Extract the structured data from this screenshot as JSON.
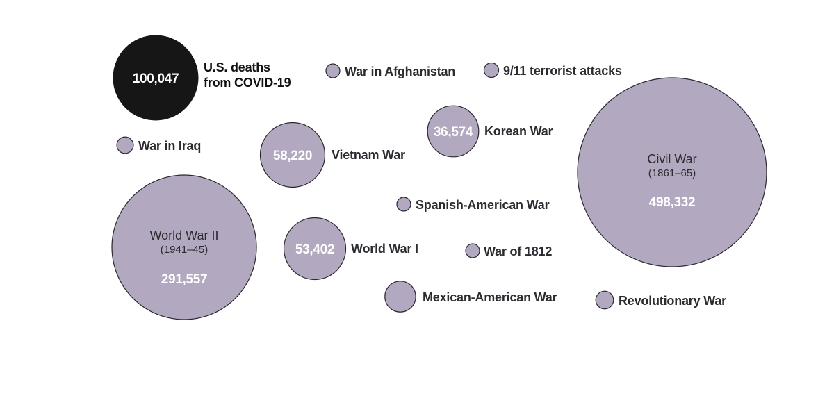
{
  "chart_data": {
    "type": "bubble",
    "title": "",
    "unit": "",
    "colors": {
      "highlight_fill": "#161616",
      "highlight_text": "#ffffff",
      "bubble_fill": "#b2a8bf",
      "bubble_stroke": "#2b2730",
      "bubble_value_text": "#ffffff",
      "label_text": "#2d2a30",
      "inside_label_text": "#2d2a30"
    },
    "items": [
      {
        "name": "U.S. deaths from COVID-19",
        "name_lines": [
          "U.S. deaths",
          "from COVID-19"
        ],
        "value": 100047,
        "value_label": "100,047",
        "highlight": true
      },
      {
        "name": "War in Afghanistan",
        "value": 2218,
        "value_label": ""
      },
      {
        "name": "9/11 terrorist attacks",
        "value": 2977,
        "value_label": ""
      },
      {
        "name": "War in Iraq",
        "value": 3836,
        "value_label": ""
      },
      {
        "name": "Vietnam War",
        "value": 58220,
        "value_label": "58,220"
      },
      {
        "name": "Korean War",
        "value": 36574,
        "value_label": "36,574"
      },
      {
        "name": "Civil War",
        "years": "(1861–65)",
        "value": 498332,
        "value_label": "498,332"
      },
      {
        "name": "Spanish-American War",
        "value": 2446,
        "value_label": ""
      },
      {
        "name": "World War II",
        "years": "(1941–45)",
        "value": 291557,
        "value_label": "291,557"
      },
      {
        "name": "World War I",
        "value": 53402,
        "value_label": "53,402"
      },
      {
        "name": "War of 1812",
        "value": 2260,
        "value_label": ""
      },
      {
        "name": "Mexican-American War",
        "value": 13283,
        "value_label": ""
      },
      {
        "name": "Revolutionary War",
        "value": 4435,
        "value_label": ""
      }
    ]
  }
}
